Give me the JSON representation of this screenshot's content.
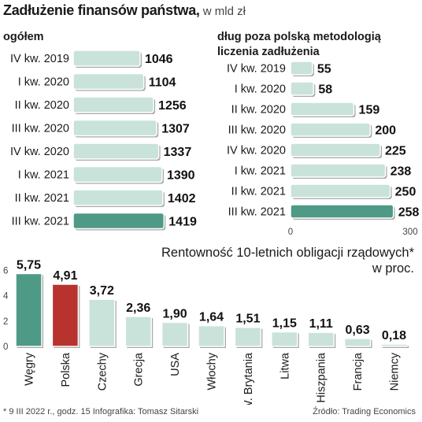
{
  "header": {
    "title_bold": "Zadłużenie finansów państwa,",
    "title_light": " w mld zł"
  },
  "colors": {
    "bar_light": "#c9e3da",
    "bar_accent": "#4e9a86",
    "bar_red": "#b8332e",
    "bar_outline": "#ffffff",
    "shadow": "#a8a8a8"
  },
  "chart_data": [
    {
      "type": "bar",
      "orientation": "horizontal",
      "subtitle": "ogółem",
      "categories": [
        "IV kw. 2019",
        "I kw. 2020",
        "II kw. 2020",
        "III kw. 2020",
        "IV kw. 2020",
        "I kw. 2021",
        "II kw. 2021",
        "III kw. 2021"
      ],
      "values": [
        1046,
        1104,
        1256,
        1307,
        1337,
        1390,
        1402,
        1419
      ],
      "value_labels": [
        "1046",
        "1104",
        "1256",
        "1307",
        "1337",
        "1390",
        "1402",
        "1419"
      ],
      "xlim": [
        0,
        1600
      ],
      "ticks": [
        0,
        800,
        1600
      ],
      "tick_labels": [
        "0",
        "800",
        "1600"
      ],
      "highlight_index": 7
    },
    {
      "type": "bar",
      "orientation": "horizontal",
      "subtitle_lines": [
        "dług poza polską metodologią",
        "liczenia zadłużenia"
      ],
      "categories": [
        "IV kw. 2019",
        "I kw. 2020",
        "II kw. 2020",
        "III kw. 2020",
        "IV kw. 2020",
        "I kw. 2021",
        "II kw. 2021",
        "III kw. 2021"
      ],
      "values": [
        55,
        58,
        159,
        200,
        225,
        238,
        250,
        258
      ],
      "value_labels": [
        "55",
        "58",
        "159",
        "200",
        "225",
        "238",
        "250",
        "258"
      ],
      "xlim": [
        0,
        300
      ],
      "ticks": [
        0,
        300
      ],
      "tick_labels": [
        "0",
        "300"
      ],
      "highlight_index": 7
    },
    {
      "type": "bar",
      "orientation": "vertical",
      "title": "Rentowność 10-letnich obligacji rządowych*",
      "title_unit": "w proc.",
      "categories": [
        "Węgry",
        "Polska",
        "Czechy",
        "Grecja",
        "USA",
        "Włochy",
        "W. Brytania",
        "Litwa",
        "Hiszpania",
        "Francja",
        "Niemcy"
      ],
      "values": [
        5.75,
        4.91,
        3.72,
        2.36,
        1.9,
        1.64,
        1.51,
        1.15,
        1.11,
        0.63,
        0.18
      ],
      "value_labels": [
        "5,75",
        "4,91",
        "3,72",
        "2,36",
        "1,90",
        "1,64",
        "1,51",
        "1,15",
        "1,11",
        "0,63",
        "0,18"
      ],
      "ylim": [
        0,
        6.4
      ],
      "ticks": [
        0,
        2,
        4,
        6
      ],
      "tick_labels": [
        "0",
        "2",
        "4",
        "6"
      ],
      "bar_styles": [
        "accent",
        "red",
        "light",
        "light",
        "light",
        "light",
        "light",
        "light",
        "light",
        "light",
        "light"
      ]
    }
  ],
  "footer": {
    "left": "* 9 III 2022 r., godz. 15 Infografika: Tomasz Sitarski",
    "right": "Źródło: Trading Economics"
  }
}
